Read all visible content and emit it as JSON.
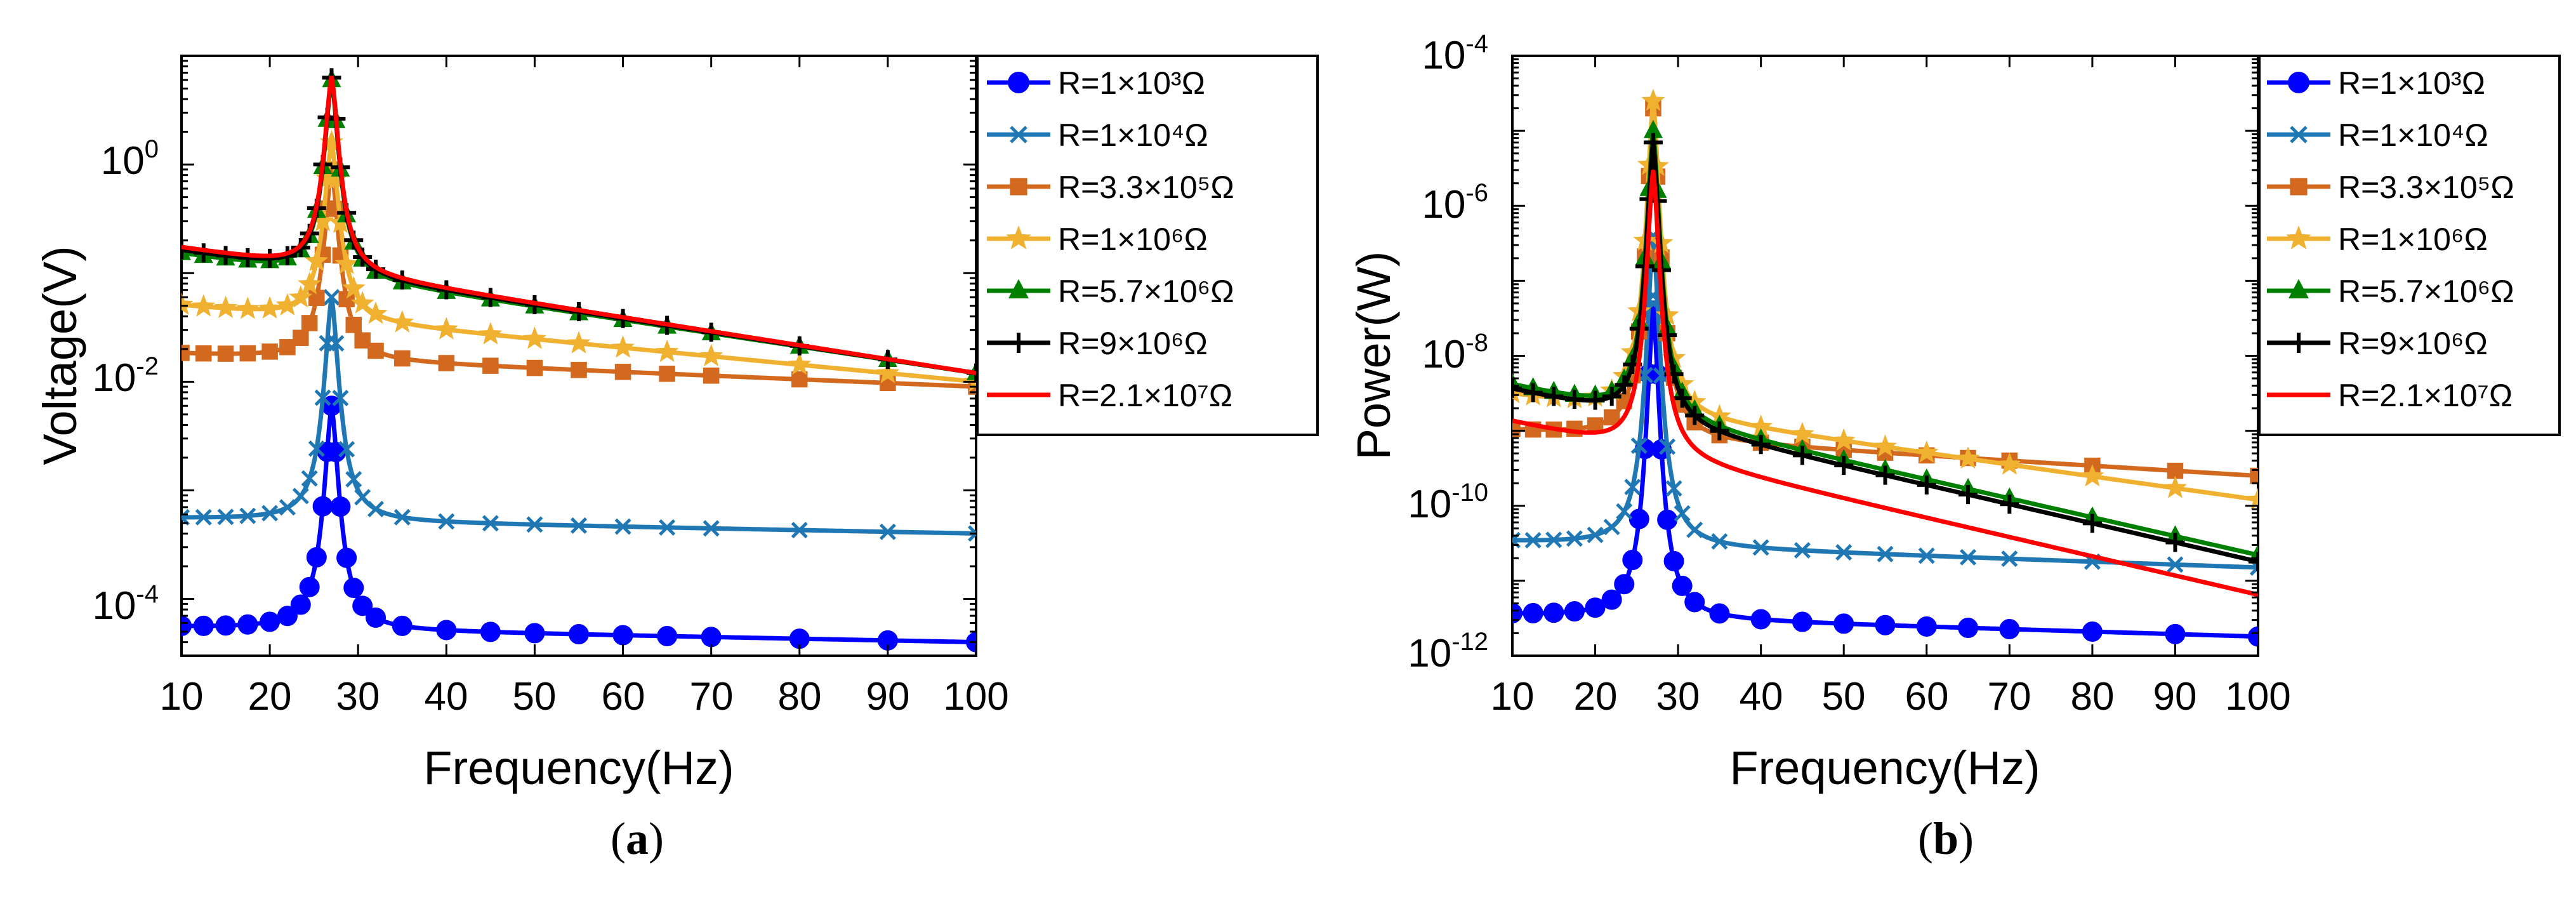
{
  "figure": {
    "captions": [
      "a",
      "b"
    ]
  },
  "legend_labels": [
    "R=1×10³Ω",
    "R=1×10⁴Ω",
    "R=3.3×10⁵Ω",
    "R=1×10⁶Ω",
    "R=5.7×10⁶Ω",
    "R=9×10⁶Ω",
    "R=2.1×10⁷Ω"
  ],
  "series_styles": [
    {
      "color": "#0000ff",
      "marker": "circle"
    },
    {
      "color": "#1f77b4",
      "marker": "x"
    },
    {
      "color": "#d2691e",
      "marker": "square"
    },
    {
      "color": "#f0b030",
      "marker": "star"
    },
    {
      "color": "#008000",
      "marker": "triangle"
    },
    {
      "color": "#000000",
      "marker": "plus"
    },
    {
      "color": "#ff0000",
      "marker": "none"
    }
  ],
  "chart_data": [
    {
      "type": "line",
      "panel": "a",
      "xlabel": "Frequency(Hz)",
      "ylabel": "Voltage(V)",
      "xscale": "linear",
      "yscale": "log",
      "xlim": [
        10,
        100
      ],
      "ylim": [
        3e-05,
        10
      ],
      "xticks": [
        10,
        20,
        30,
        40,
        50,
        60,
        70,
        80,
        90,
        100
      ],
      "yticks": [
        {
          "base": "10",
          "exp": "-4",
          "value": 0.0001
        },
        {
          "base": "10",
          "exp": "-2",
          "value": 0.01
        },
        {
          "base": "10",
          "exp": "0",
          "value": 1
        }
      ],
      "legend_position": "outside-right",
      "resonance_hz": 27,
      "series": [
        {
          "name": "R=1×10³Ω",
          "x": [
            10,
            100
          ],
          "y": [
            5.5e-05,
            4e-05
          ],
          "peak": 0.006
        },
        {
          "name": "R=1×10⁴Ω",
          "x": [
            10,
            100
          ],
          "y": [
            0.00055,
            0.0004
          ],
          "peak": 0.06
        },
        {
          "name": "R=3.3×10⁵Ω",
          "x": [
            10,
            100
          ],
          "y": [
            0.018,
            0.009
          ],
          "peak": 0.9
        },
        {
          "name": "R=1×10⁶Ω",
          "x": [
            10,
            100
          ],
          "y": [
            0.05,
            0.01
          ],
          "peak": 1.6
        },
        {
          "name": "R=5.7×10⁶Ω",
          "x": [
            10,
            100
          ],
          "y": [
            0.15,
            0.012
          ],
          "peak": 6
        },
        {
          "name": "R=9×10⁶Ω",
          "x": [
            10,
            100
          ],
          "y": [
            0.16,
            0.012
          ],
          "peak": 6.3
        },
        {
          "name": "R=2.1×10⁷Ω",
          "x": [
            10,
            100
          ],
          "y": [
            0.17,
            0.012
          ],
          "peak": 6.5
        }
      ]
    },
    {
      "type": "line",
      "panel": "b",
      "xlabel": "Frequency(Hz)",
      "ylabel": "Power(W)",
      "xscale": "linear",
      "yscale": "log",
      "xlim": [
        10,
        100
      ],
      "ylim": [
        1e-12,
        0.0001
      ],
      "xticks": [
        10,
        20,
        30,
        40,
        50,
        60,
        70,
        80,
        90,
        100
      ],
      "yticks": [
        {
          "base": "10",
          "exp": "-12",
          "value": 1e-12
        },
        {
          "base": "10",
          "exp": "-10",
          "value": 1e-10
        },
        {
          "base": "10",
          "exp": "-8",
          "value": 1e-08
        },
        {
          "base": "10",
          "exp": "-6",
          "value": 1e-06
        },
        {
          "base": "10",
          "exp": "-4",
          "value": 0.0001
        }
      ],
      "legend_position": "outside-right",
      "resonance_hz": 27,
      "series": [
        {
          "name": "R=1×10³Ω",
          "x": [
            10,
            100
          ],
          "y": [
            3.5e-12,
            1.8e-12
          ],
          "peak": 4e-08
        },
        {
          "name": "R=1×10⁴Ω",
          "x": [
            10,
            100
          ],
          "y": [
            3.3e-11,
            1.5e-11
          ],
          "peak": 4e-07
        },
        {
          "name": "R=3.3×10⁵Ω",
          "x": [
            10,
            100
          ],
          "y": [
            1e-09,
            2.5e-10
          ],
          "peak": 2e-05
        },
        {
          "name": "R=1×10⁶Ω",
          "x": [
            10,
            100
          ],
          "y": [
            3e-09,
            1.2e-10
          ],
          "peak": 2.5e-05
        },
        {
          "name": "R=5.7×10⁶Ω",
          "x": [
            10,
            100
          ],
          "y": [
            4e-09,
            2.2e-11
          ],
          "peak": 1e-05
        },
        {
          "name": "R=9×10⁶Ω",
          "x": [
            10,
            100
          ],
          "y": [
            3.5e-09,
            1.8e-11
          ],
          "peak": 7e-06
        },
        {
          "name": "R=2.1×10⁷Ω",
          "x": [
            10,
            100
          ],
          "y": [
            1.3e-09,
            6.5e-12
          ],
          "peak": 3e-06
        }
      ]
    }
  ]
}
